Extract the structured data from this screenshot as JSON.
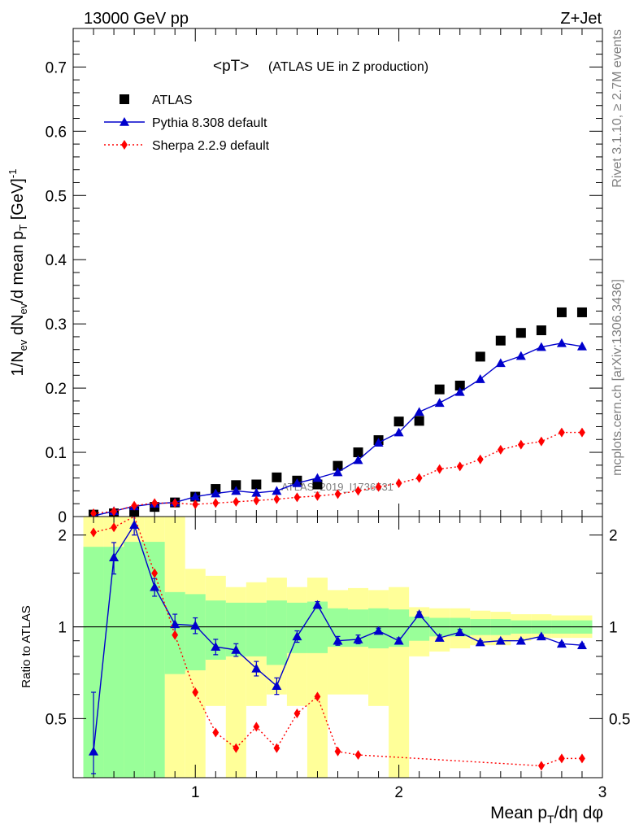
{
  "header": {
    "energy_label": "13000 GeV pp",
    "process_label": "Z+Jet"
  },
  "side_labels": {
    "rivet": "Rivet 3.1.10, ≥ 2.7M events",
    "mcplots": "mcplots.cern.ch [arXiv:1306.3436]"
  },
  "watermark": "ATLAS_2019_I1736531",
  "chart_data": [
    {
      "type": "scatter",
      "title": "<pT>",
      "subtitle": "(ATLAS UE in Z production)",
      "ylabel": "1/N_ev dN_ev/d mean p_T [GeV]^-1",
      "xlim": [
        0.4,
        3.0
      ],
      "ylim": [
        0,
        0.76
      ],
      "yticks": [
        0,
        0.1,
        0.2,
        0.3,
        0.4,
        0.5,
        0.6,
        0.7
      ],
      "ytick_labels": [
        "0",
        "0.1",
        "0.2",
        "0.3",
        "0.4",
        "0.5",
        "0.6",
        "0.7"
      ],
      "legend_position": "top-left",
      "series": [
        {
          "name": "ATLAS",
          "color": "#000000",
          "marker": "square",
          "x": [
            0.5,
            0.6,
            0.7,
            0.8,
            0.9,
            1.0,
            1.1,
            1.2,
            1.3,
            1.4,
            1.5,
            1.6,
            1.7,
            1.8,
            1.9,
            2.0,
            2.1,
            2.2,
            2.3,
            2.4,
            2.5,
            2.6,
            2.7,
            2.8,
            2.9
          ],
          "y": [
            0.003,
            0.005,
            0.008,
            0.015,
            0.022,
            0.031,
            0.043,
            0.049,
            0.05,
            0.061,
            0.056,
            0.05,
            0.079,
            0.1,
            0.119,
            0.148,
            0.149,
            0.198,
            0.204,
            0.249,
            0.274,
            0.286,
            0.29,
            0.318,
            0.318
          ]
        },
        {
          "name": "Pythia 8.308 default",
          "color": "#0000cc",
          "marker": "triangle",
          "x": [
            0.5,
            0.6,
            0.7,
            0.8,
            0.9,
            1.0,
            1.1,
            1.2,
            1.3,
            1.4,
            1.5,
            1.6,
            1.7,
            1.8,
            1.9,
            2.0,
            2.1,
            2.2,
            2.3,
            2.4,
            2.5,
            2.6,
            2.7,
            2.8,
            2.9
          ],
          "y": [
            0.001,
            0.0085,
            0.016,
            0.02,
            0.022,
            0.031,
            0.036,
            0.04,
            0.037,
            0.04,
            0.052,
            0.06,
            0.069,
            0.088,
            0.115,
            0.131,
            0.163,
            0.177,
            0.194,
            0.214,
            0.239,
            0.25,
            0.264,
            0.27,
            0.265
          ]
        },
        {
          "name": "Sherpa 2.2.9 default",
          "color": "#ff0000",
          "marker": "diamond",
          "x": [
            0.5,
            0.6,
            0.7,
            0.8,
            0.9,
            1.0,
            1.1,
            1.2,
            1.3,
            1.4,
            1.5,
            1.6,
            1.7,
            1.8,
            1.9,
            2.0,
            2.1,
            2.2,
            2.3,
            2.4,
            2.5,
            2.6,
            2.7,
            2.8,
            2.9
          ],
          "y": [
            0.005,
            0.008,
            0.017,
            0.021,
            0.021,
            0.019,
            0.021,
            0.023,
            0.025,
            0.027,
            0.03,
            0.032,
            0.035,
            0.04,
            0.046,
            0.052,
            0.06,
            0.074,
            0.078,
            0.089,
            0.104,
            0.112,
            0.117,
            0.131,
            0.131
          ]
        }
      ]
    },
    {
      "type": "line",
      "ylabel": "Ratio to ATLAS",
      "xlabel": "Mean p_T/dη dφ",
      "xlim": [
        0.4,
        3.0
      ],
      "ylim": [
        0.32,
        2.3
      ],
      "xticks": [
        1,
        2,
        3
      ],
      "xtick_labels": [
        "1",
        "2",
        "3"
      ],
      "yticks": [
        0.5,
        1,
        2
      ],
      "ytick_labels": [
        "0.5",
        "1",
        "2"
      ],
      "reference_line": 1,
      "bands": {
        "bin_edges": [
          0.45,
          0.55,
          0.65,
          0.75,
          0.85,
          0.95,
          1.05,
          1.15,
          1.25,
          1.35,
          1.45,
          1.55,
          1.65,
          1.75,
          1.85,
          1.95,
          2.05,
          2.15,
          2.25,
          2.35,
          2.45,
          2.55,
          2.65,
          2.75,
          2.85,
          2.95
        ],
        "stat": {
          "color": "#99ff99",
          "low": [
            0.3,
            0.3,
            0.3,
            0.3,
            0.7,
            0.72,
            0.78,
            0.8,
            0.8,
            0.75,
            0.82,
            0.82,
            0.86,
            0.86,
            0.85,
            0.86,
            0.9,
            0.93,
            0.93,
            0.94,
            0.94,
            0.95,
            0.95,
            0.95,
            0.95
          ],
          "high": [
            1.83,
            1.83,
            1.9,
            1.9,
            1.3,
            1.28,
            1.22,
            1.2,
            1.2,
            1.22,
            1.2,
            1.21,
            1.15,
            1.14,
            1.15,
            1.14,
            1.08,
            1.07,
            1.07,
            1.06,
            1.06,
            1.05,
            1.05,
            1.05,
            1.05
          ]
        },
        "syst": {
          "color": "#ffff99",
          "low": [
            0.3,
            0.3,
            0.3,
            0.3,
            0.3,
            0.3,
            0.55,
            0.3,
            0.55,
            0.6,
            0.55,
            0.3,
            0.6,
            0.6,
            0.55,
            0.3,
            0.8,
            0.83,
            0.85,
            0.87,
            0.87,
            0.9,
            0.92,
            0.92,
            0.92
          ],
          "high": [
            2.5,
            2.5,
            2.5,
            2.5,
            2.5,
            1.55,
            1.47,
            1.35,
            1.4,
            1.45,
            1.35,
            1.45,
            1.32,
            1.34,
            1.32,
            1.35,
            1.16,
            1.15,
            1.15,
            1.13,
            1.12,
            1.1,
            1.1,
            1.09,
            1.09
          ]
        }
      },
      "series": [
        {
          "name": "Pythia 8.308 default",
          "color": "#0000cc",
          "marker": "triangle",
          "x": [
            0.5,
            0.6,
            0.7,
            0.8,
            0.9,
            1.0,
            1.1,
            1.2,
            1.3,
            1.4,
            1.5,
            1.6,
            1.7,
            1.8,
            1.9,
            2.0,
            2.1,
            2.2,
            2.3,
            2.4,
            2.5,
            2.6,
            2.7,
            2.8,
            2.9
          ],
          "y": [
            0.39,
            1.69,
            2.16,
            1.35,
            1.02,
            1.01,
            0.86,
            0.84,
            0.73,
            0.64,
            0.93,
            1.18,
            0.9,
            0.91,
            0.97,
            0.9,
            1.1,
            0.92,
            0.96,
            0.89,
            0.9,
            0.9,
            0.93,
            0.88,
            0.87
          ],
          "err": [
            0.22,
            0.2,
            0.16,
            0.09,
            0.08,
            0.06,
            0.05,
            0.04,
            0.04,
            0.04,
            0.04,
            0.03,
            0.03,
            0.03,
            0.02,
            0.02,
            0.02,
            0.02,
            0.02,
            0.01,
            0.01,
            0.01,
            0.01,
            0.01,
            0.01
          ]
        },
        {
          "name": "Sherpa 2.2.9 default",
          "color": "#ff0000",
          "marker": "diamond",
          "x": [
            0.5,
            0.6,
            0.7,
            0.8,
            0.9,
            1.0,
            1.1,
            1.2,
            1.3,
            1.4,
            1.5,
            1.6,
            1.7,
            1.8,
            2.7,
            2.8,
            2.9
          ],
          "y": [
            2.04,
            2.12,
            2.4,
            1.5,
            0.94,
            0.61,
            0.45,
            0.4,
            0.47,
            0.4,
            0.52,
            0.59,
            0.39,
            0.38,
            0.35,
            0.37,
            0.37
          ]
        }
      ]
    }
  ]
}
